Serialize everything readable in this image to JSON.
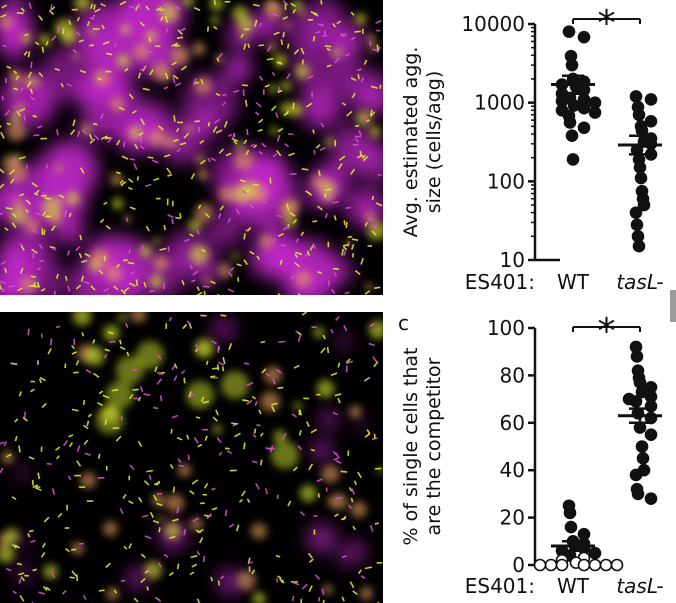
{
  "panel_letters": {
    "c": "c"
  },
  "colors": {
    "magenta": "#c028c8",
    "yellow": "#d8e830",
    "background": "#000000",
    "marker": "#111111"
  },
  "micrographs": {
    "top": {
      "name": "aggregate-micrograph",
      "content": "dense magenta aggregates with yellow cells"
    },
    "bottom": {
      "name": "single-cell-micrograph",
      "content": "sparse cells with small yellow aggregates"
    }
  },
  "chart_data": [
    {
      "type": "scatter",
      "title": "",
      "ylabel": "Avg. estimated agg. size (cells/agg)",
      "yscale": "log",
      "ylim": [
        10,
        10000
      ],
      "yticks": [
        "10",
        "100",
        "1000",
        "10000"
      ],
      "group_prefix": "ES401:",
      "categories": [
        "WT",
        "tasL-"
      ],
      "significance": "*",
      "series": [
        {
          "category": "WT",
          "mean": 1700,
          "sem": [
            1300,
            2200
          ],
          "points": [
            8000,
            6800,
            3900,
            3000,
            2000,
            1850,
            1700,
            1600,
            1450,
            1300,
            1150,
            1100,
            1050,
            1000,
            920,
            850,
            800,
            750,
            680,
            560,
            480,
            380,
            190
          ]
        },
        {
          "category": "tasL-",
          "mean": 290,
          "sem": [
            220,
            380
          ],
          "points": [
            1200,
            1100,
            880,
            700,
            580,
            500,
            440,
            350,
            320,
            300,
            250,
            220,
            190,
            150,
            110,
            75,
            60,
            50,
            40,
            28,
            20,
            15
          ]
        }
      ]
    },
    {
      "type": "scatter",
      "title": "",
      "ylabel": "% of single cells that are the competitor",
      "ylim": [
        0,
        100
      ],
      "yticks": [
        "0",
        "20",
        "40",
        "60",
        "80",
        "100"
      ],
      "group_prefix": "ES401:",
      "categories": [
        "WT",
        "tasL-"
      ],
      "significance": "*",
      "series": [
        {
          "category": "WT",
          "mean": 8,
          "sem": [
            6,
            10
          ],
          "points": [
            25,
            22,
            16,
            13,
            10,
            9,
            8,
            7,
            6,
            5,
            4,
            3,
            2,
            1,
            0,
            0,
            0,
            0,
            0,
            0,
            0
          ],
          "points_filled": [
            25,
            22,
            16,
            13,
            10,
            9,
            8,
            7,
            6,
            5,
            4
          ],
          "points_open": [
            3,
            2,
            1,
            0,
            0,
            0,
            0,
            0,
            0,
            0
          ]
        },
        {
          "category": "tasL-",
          "mean": 63,
          "sem": [
            60,
            66
          ],
          "points": [
            92,
            88,
            82,
            79,
            77,
            75,
            73,
            71,
            70,
            69,
            67,
            64,
            62,
            58,
            55,
            50,
            45,
            40,
            38,
            32,
            30,
            28
          ]
        }
      ]
    }
  ]
}
